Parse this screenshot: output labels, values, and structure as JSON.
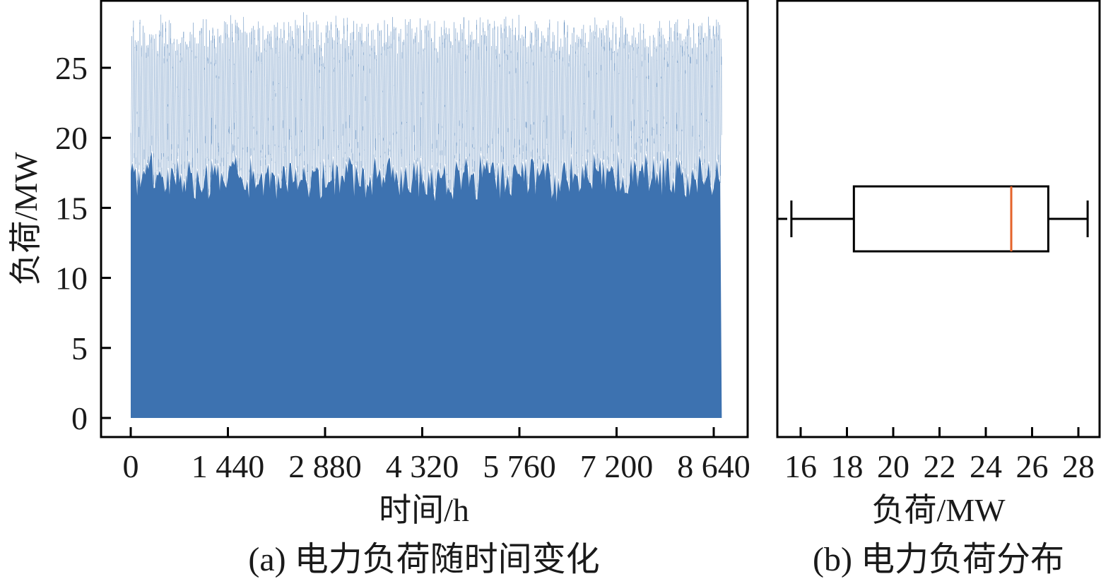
{
  "chart_data": [
    {
      "type": "area",
      "caption": "(a) 电力负荷随时间变化",
      "xlabel": "时间/h",
      "ylabel": "负荷/MW",
      "xlim": [
        0,
        8760
      ],
      "ylim": [
        -1.5,
        29.5
      ],
      "x_ticks": [
        0,
        1440,
        2880,
        4320,
        5760,
        7200,
        8640
      ],
      "x_tick_labels": [
        "0",
        "1 440",
        "2 880",
        "4 320",
        "5 760",
        "7 200",
        "8 640"
      ],
      "y_ticks": [
        0,
        5,
        10,
        15,
        20,
        25
      ],
      "y_tick_labels": [
        "0",
        "5",
        "10",
        "15",
        "20",
        "25"
      ],
      "series": [
        {
          "x_range": [
            0,
            8760
          ],
          "resolution_h": 1,
          "daily_min_range": [
            16,
            19
          ],
          "daily_max_range": [
            26,
            28.3
          ],
          "color": "#3d72b0"
        }
      ]
    },
    {
      "type": "box",
      "caption": "(b) 电力负荷分布",
      "xlabel": "负荷/MW",
      "xlim": [
        14.9,
        29.0
      ],
      "x_ticks": [
        16,
        18,
        20,
        22,
        24,
        26,
        28
      ],
      "x_tick_labels": [
        "16",
        "18",
        "20",
        "22",
        "24",
        "26",
        "28"
      ],
      "box": {
        "whisker_low": 15.6,
        "q1": 18.3,
        "median": 25.1,
        "q3": 26.7,
        "whisker_high": 28.4
      },
      "box_color": "#000000",
      "median_color": "#e4632a"
    }
  ]
}
